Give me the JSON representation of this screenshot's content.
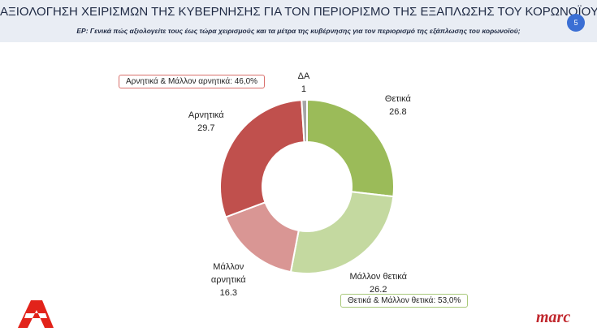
{
  "header": {
    "title": "ΑΞΙΟΛΟΓΗΣΗ ΧΕΙΡΙΣΜΩΝ ΤΗΣ ΚΥΒΕΡΝΗΣΗΣ ΓΙΑ ΤΟΝ ΠΕΡΙΟΡΙΣΜΟ ΤΗΣ ΕΞΑΠΛΩΣΗΣ ΤΟΥ ΚΟΡΩΝΟΪΟΥ",
    "subtitle": "ΕΡ: Γενικά πώς αξιολογείτε τους έως τώρα χειρισμούς και τα μέτρα της κυβέρνησης για τον περιορισμό της εξάπλωσης του κορωνοϊού;",
    "page_number": "5"
  },
  "chart_data": {
    "type": "donut",
    "categories": [
      "Θετικά",
      "Μάλλον θετικά",
      "Μάλλον αρνητικά",
      "Αρνητικά",
      "ΔΑ"
    ],
    "values": [
      26.8,
      26.2,
      16.3,
      29.7,
      1
    ],
    "colors": [
      "#9bbb59",
      "#c4d9a0",
      "#d99694",
      "#c0504d",
      "#a6a6a6"
    ],
    "annotations": [
      "Αρνητικά & Μάλλον αρνητικά: 46,0%",
      "Θετικά & Μάλλον θετικά: 53,0%"
    ]
  },
  "footer": {
    "brand": "marc"
  }
}
